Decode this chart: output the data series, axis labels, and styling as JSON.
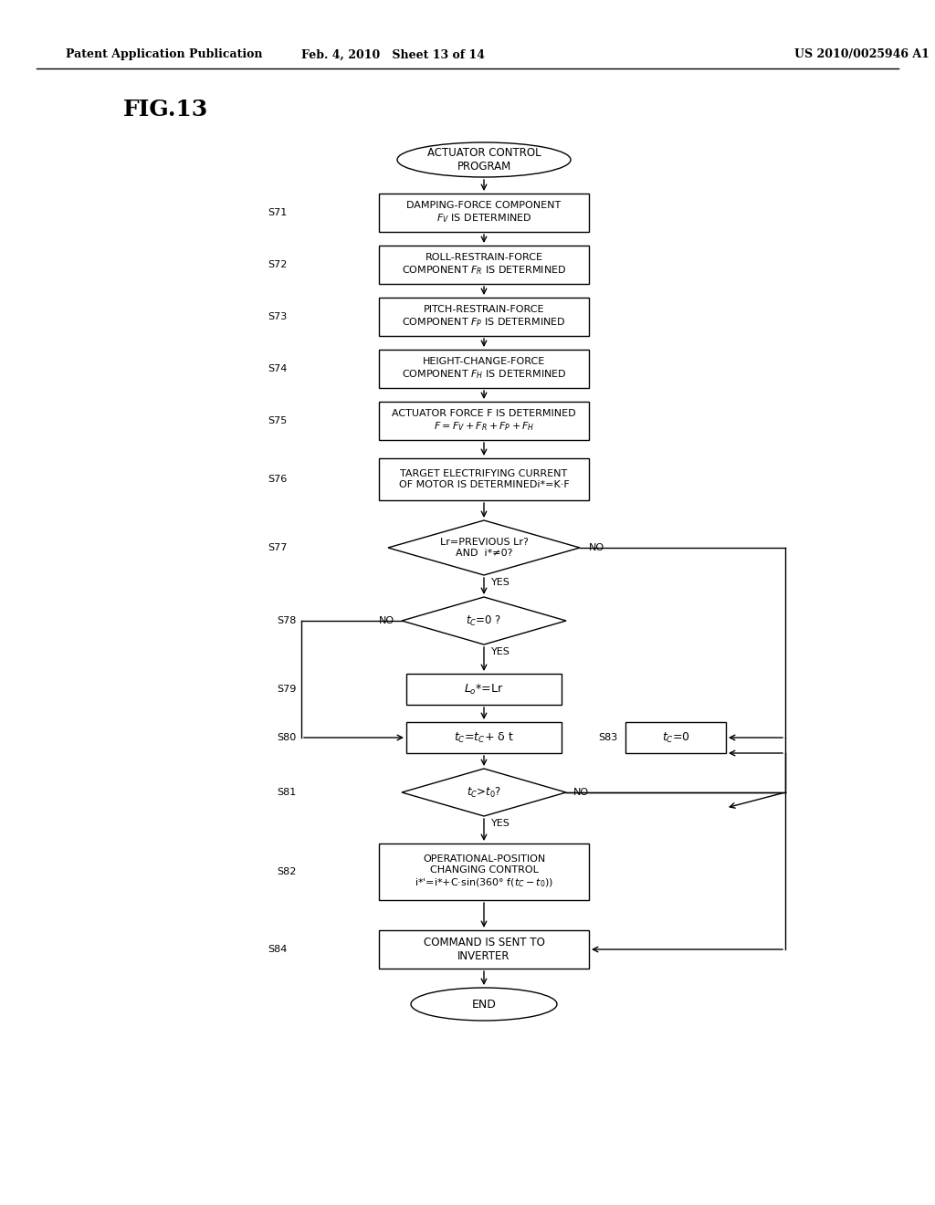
{
  "bg_color": "#ffffff",
  "header_left": "Patent Application Publication",
  "header_center": "Feb. 4, 2010   Sheet 13 of 14",
  "header_right": "US 2010/0025946 A1",
  "fig_label": "FIG.13"
}
